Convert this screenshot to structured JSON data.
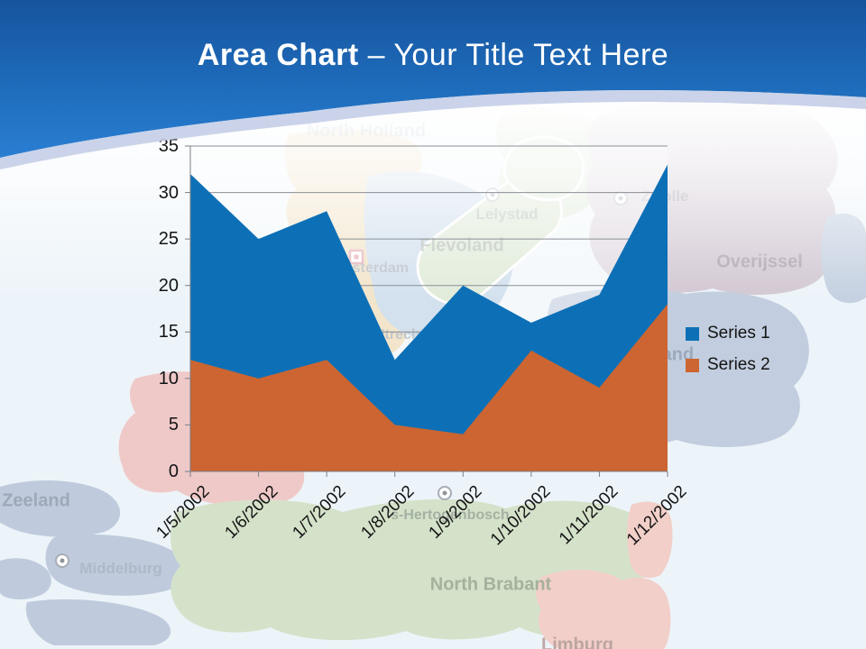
{
  "slide": {
    "title_bold": "Area Chart",
    "title_rest": " – Your Title Text Here"
  },
  "chart_data": {
    "type": "area",
    "overlapped": true,
    "title": "",
    "xlabel": "",
    "ylabel": "",
    "categories": [
      "1/5/2002",
      "1/6/2002",
      "1/7/2002",
      "1/8/2002",
      "1/9/2002",
      "1/10/2002",
      "1/11/2002",
      "1/12/2002"
    ],
    "series": [
      {
        "name": "Series 1",
        "color": "#0D70B7",
        "values": [
          32,
          25,
          28,
          12,
          20,
          16,
          19,
          33
        ]
      },
      {
        "name": "Series 2",
        "color": "#CC6531",
        "values": [
          12,
          10,
          12,
          5,
          4,
          13,
          9,
          18
        ]
      }
    ],
    "ylim": [
      0,
      35
    ],
    "yticks": [
      0,
      5,
      10,
      15,
      20,
      25,
      30,
      35
    ],
    "grid": "horizontal",
    "legend_position": "right",
    "gridline_color": "#8A8F96",
    "axis_color": "#7A7F86"
  },
  "map": {
    "labels": {
      "north_holland": "North Holland",
      "lelystad": "Lelystad",
      "flevoland": "Flevoland",
      "zwolle": "Zwolle",
      "overijssel": "Overijssel",
      "gelderland": "Gelderland",
      "amsterdam": "Amsterdam",
      "utrecht": "Utrecht",
      "zeeland": "Zeeland",
      "middelburg": "Middelburg",
      "s_hertogenbosch": "'s-Hertogenbosch",
      "north_brabant": "North Brabant",
      "limburg": "Limburg"
    },
    "region_colors": {
      "north_holland": "#EBD5AC",
      "friesland": "#D4E2CC",
      "water": "#B9CFE4",
      "flevoland": "#CFE0C4",
      "noordoostpolder": "#CFE0C4",
      "overijssel": "#D2C8D3",
      "east_edge": "#C5D1E1",
      "gelderland": "#C2CEDF",
      "south_holland": "#EFC9C8",
      "zeeland": "#BFCBDD",
      "north_brabant": "#D5E2CA",
      "limburg": "#F2CFC9",
      "limburg_sliver": "#F2CFC9"
    }
  },
  "header": {
    "colors": {
      "gradient_top": "#17549E",
      "gradient_mid": "#1E6CBB",
      "gradient_bottom": "#2A7ED2",
      "band": "#C5CFE7"
    }
  }
}
